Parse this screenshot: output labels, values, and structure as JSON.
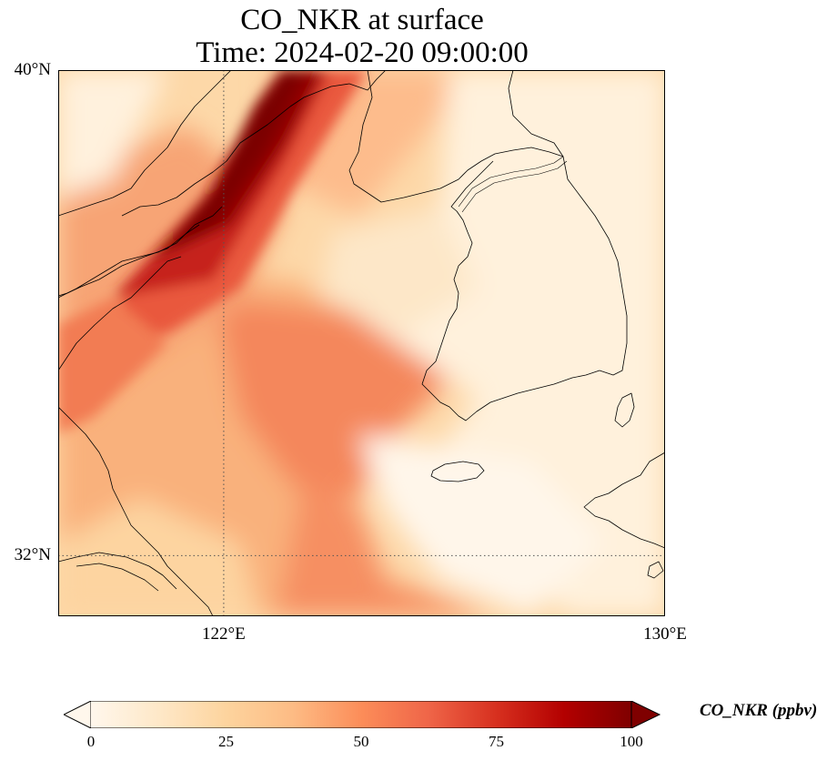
{
  "title_line1": "CO_NKR at surface",
  "title_line2": "Time: 2024-02-20 09:00:00",
  "map": {
    "variable": "CO_NKR",
    "level": "surface",
    "projection": "PlateCarree",
    "lon_range": [
      119,
      130
    ],
    "lat_range": [
      31,
      40
    ],
    "lat_ticks": [
      {
        "value": 40,
        "label": "40°N"
      },
      {
        "value": 32,
        "label": "32°N"
      }
    ],
    "lon_ticks": [
      {
        "value": 122,
        "label": "122°E"
      },
      {
        "value": 130,
        "label": "130°E"
      }
    ],
    "gridlines": "dotted at 122°E and 32°N",
    "coastlines": true
  },
  "colorbar": {
    "label": "CO_NKR (ppbv)",
    "colormap": "OrRd",
    "min": 0,
    "max": 100,
    "extend": "both",
    "ticks": [
      "0",
      "25",
      "50",
      "75",
      "100"
    ],
    "colors": [
      "#fff7ec",
      "#fee8c8",
      "#fdd49e",
      "#fdbb84",
      "#fc8d59",
      "#ef6548",
      "#d7301f",
      "#b30000",
      "#7f0000"
    ]
  }
}
